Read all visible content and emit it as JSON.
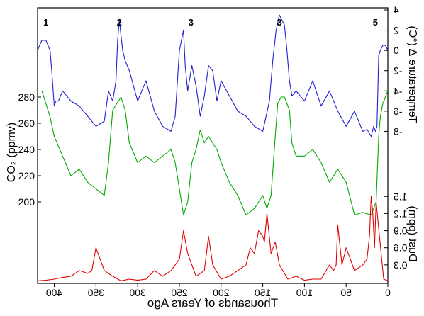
{
  "chart_data": {
    "type": "line",
    "x_axis": {
      "label": "Thousands of Years Ago",
      "range": [
        0,
        420
      ],
      "reversed": true,
      "ticks": [
        0,
        50,
        100,
        150,
        200,
        250,
        300,
        350,
        400
      ],
      "tick_labels": [
        "0",
        "50",
        "100",
        "150",
        "200",
        "250",
        "300",
        "350",
        "400"
      ]
    },
    "temperature_axis": {
      "label": "Temperature Δ (°C)",
      "side": "right",
      "mirrored_text": true,
      "range": [
        -10,
        4
      ],
      "ticks": [
        4,
        2,
        0,
        -2,
        -4,
        -6,
        -8
      ],
      "tick_labels": [
        "4",
        "2",
        "0",
        "-2",
        "-4",
        "-6",
        "-8"
      ]
    },
    "co2_axis": {
      "label": "CO₂ (ppmv)",
      "side": "left",
      "range": [
        180,
        300
      ],
      "ticks": [
        280,
        260,
        240,
        220,
        200
      ],
      "tick_labels": [
        "280",
        "260",
        "240",
        "220",
        "200"
      ]
    },
    "dust_axis": {
      "label": "Dust (ppm)",
      "side": "right",
      "mirrored_text": true,
      "range": [
        0,
        2.0
      ],
      "ticks": [
        1.5,
        1.2,
        0.9,
        0.6,
        0.3
      ],
      "tick_labels": [
        "1.5",
        "1.2",
        "0.9",
        "0.6",
        "0.3"
      ]
    },
    "annotations": [
      {
        "text": "1",
        "x": 410
      },
      {
        "text": "2",
        "x": 322
      },
      {
        "text": "3",
        "x": 236
      },
      {
        "text": "3",
        "x": 130
      },
      {
        "text": "5",
        "x": 15
      }
    ],
    "series": [
      {
        "key": "temperature",
        "color": "#2020d0",
        "x": [
          0,
          3,
          6,
          9,
          11,
          13,
          15,
          17,
          20,
          25,
          30,
          40,
          50,
          60,
          70,
          80,
          90,
          100,
          110,
          115,
          118,
          121,
          124,
          127,
          130,
          134,
          138,
          142,
          146,
          150,
          160,
          170,
          180,
          190,
          200,
          205,
          210,
          215,
          220,
          225,
          230,
          235,
          240,
          243,
          245,
          250,
          255,
          260,
          270,
          280,
          290,
          300,
          310,
          315,
          318,
          320,
          322,
          324,
          326,
          330,
          335,
          340,
          350,
          360,
          370,
          380,
          390,
          395,
          398,
          400,
          403,
          405,
          410,
          415,
          420
        ],
        "y": [
          0,
          0.5,
          0.5,
          0,
          -0.5,
          -7.5,
          -8.0,
          -7.5,
          -8.5,
          -7.8,
          -8.0,
          -6.0,
          -7.5,
          -6.0,
          -4.0,
          -5.5,
          -3.0,
          -5.0,
          -4.0,
          -4.5,
          -3.0,
          0,
          2.5,
          3.0,
          3.5,
          2.0,
          -1.0,
          -5.0,
          -6.5,
          -8.0,
          -7.5,
          -6.5,
          -6.0,
          -4.5,
          -3.0,
          -5.0,
          -2.0,
          -1.5,
          -4.5,
          -6.5,
          -3.5,
          -1.5,
          -4.0,
          -1.5,
          2.0,
          0,
          -6.5,
          -8.0,
          -7.5,
          -6.0,
          -3.0,
          -5.0,
          -2.0,
          -1.0,
          0,
          1.5,
          3.0,
          1.0,
          -3.0,
          -5.0,
          -4.0,
          -7.0,
          -7.5,
          -6.5,
          -5.5,
          -5.0,
          -4.0,
          -5.0,
          -5.0,
          -5.5,
          -2.0,
          0,
          1.0,
          1.0,
          0
        ]
      },
      {
        "key": "co2",
        "color": "#00aa00",
        "x": [
          0,
          3,
          6,
          9,
          11,
          14,
          20,
          30,
          40,
          50,
          60,
          70,
          80,
          90,
          100,
          110,
          115,
          118,
          121,
          124,
          128,
          132,
          135,
          140,
          145,
          150,
          160,
          170,
          180,
          190,
          200,
          205,
          210,
          215,
          220,
          225,
          230,
          235,
          240,
          245,
          250,
          255,
          260,
          270,
          280,
          290,
          300,
          310,
          315,
          320,
          325,
          330,
          335,
          340,
          350,
          360,
          370,
          380,
          390,
          400,
          405,
          410,
          415
        ],
        "y": [
          285,
          280,
          275,
          265,
          250,
          200,
          190,
          192,
          190,
          215,
          225,
          215,
          230,
          240,
          235,
          235,
          245,
          270,
          275,
          280,
          280,
          275,
          250,
          205,
          195,
          205,
          195,
          190,
          205,
          215,
          230,
          240,
          245,
          250,
          245,
          255,
          240,
          230,
          200,
          190,
          210,
          230,
          240,
          235,
          230,
          235,
          230,
          245,
          270,
          280,
          275,
          270,
          230,
          205,
          210,
          215,
          225,
          220,
          235,
          250,
          265,
          275,
          285
        ]
      },
      {
        "key": "dust",
        "color": "#e00000",
        "x": [
          0,
          5,
          10,
          14,
          16,
          18,
          20,
          22,
          25,
          30,
          40,
          50,
          55,
          60,
          62,
          65,
          70,
          80,
          90,
          100,
          110,
          120,
          130,
          135,
          140,
          145,
          148,
          150,
          155,
          160,
          165,
          170,
          180,
          190,
          200,
          210,
          215,
          220,
          230,
          240,
          245,
          250,
          255,
          260,
          270,
          280,
          290,
          300,
          310,
          320,
          330,
          340,
          345,
          350,
          355,
          360,
          370,
          380,
          390,
          400,
          410,
          420
        ],
        "y": [
          0.02,
          0.05,
          0.8,
          1.4,
          0.6,
          1.2,
          1.5,
          0.8,
          0.4,
          0.3,
          0.2,
          0.6,
          0.3,
          1.0,
          0.3,
          0.2,
          0.3,
          0.05,
          0.05,
          0.03,
          0.1,
          0.05,
          0.3,
          0.7,
          0.5,
          1.2,
          0.7,
          0.8,
          0.9,
          0.5,
          0.6,
          0.3,
          0.2,
          0.1,
          0.05,
          0.3,
          0.8,
          0.2,
          0.1,
          0.5,
          0.9,
          0.4,
          0.3,
          0.2,
          0.1,
          0.2,
          0.05,
          0.03,
          0.05,
          0.02,
          0.1,
          0.2,
          0.4,
          0.6,
          0.2,
          0.15,
          0.2,
          0.1,
          0.08,
          0.05,
          0.03,
          0.02
        ]
      }
    ]
  }
}
